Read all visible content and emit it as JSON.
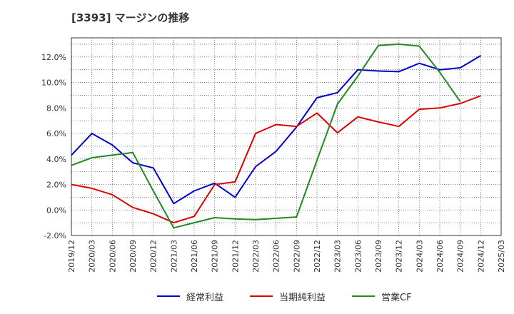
{
  "chart_data": {
    "type": "line",
    "title": "[3393]  マージンの推移",
    "x_labels": [
      "2019/12",
      "2020/03",
      "2020/06",
      "2020/09",
      "2020/12",
      "2021/03",
      "2021/06",
      "2021/09",
      "2021/12",
      "2022/03",
      "2022/06",
      "2022/09",
      "2022/12",
      "2023/03",
      "2023/06",
      "2023/09",
      "2023/12",
      "2024/03",
      "2024/06",
      "2024/09",
      "2024/12",
      "2025/03"
    ],
    "ylim": [
      -2,
      13.5
    ],
    "yticks": [
      -2,
      0,
      2,
      4,
      6,
      8,
      10,
      12
    ],
    "ytick_labels": [
      "-2.0%",
      "0.0%",
      "2.0%",
      "4.0%",
      "6.0%",
      "8.0%",
      "10.0%",
      "12.0%"
    ],
    "grid": true,
    "legend_position": "bottom",
    "series": [
      {
        "name": "経常利益",
        "color": "#0000cc",
        "values": [
          4.3,
          6.0,
          5.1,
          3.7,
          3.3,
          0.5,
          1.5,
          2.1,
          1.0,
          3.4,
          4.6,
          6.5,
          8.8,
          9.2,
          11.0,
          10.9,
          10.85,
          11.5,
          11.0,
          11.15,
          12.1,
          null
        ]
      },
      {
        "name": "当期純利益",
        "color": "#dd0000",
        "values": [
          2.0,
          1.7,
          1.2,
          0.2,
          -0.3,
          -1.0,
          -0.5,
          2.0,
          2.2,
          6.0,
          6.7,
          6.55,
          7.6,
          6.05,
          7.3,
          6.9,
          6.55,
          7.9,
          8.0,
          8.35,
          8.95,
          null
        ]
      },
      {
        "name": "営業CF",
        "color": "#228822",
        "values": [
          3.5,
          4.1,
          4.3,
          4.5,
          1.5,
          -1.4,
          -1.0,
          -0.6,
          -0.7,
          -0.75,
          -0.65,
          -0.55,
          3.9,
          8.3,
          10.5,
          12.9,
          13.0,
          12.85,
          10.8,
          8.5,
          null,
          null
        ]
      }
    ]
  }
}
